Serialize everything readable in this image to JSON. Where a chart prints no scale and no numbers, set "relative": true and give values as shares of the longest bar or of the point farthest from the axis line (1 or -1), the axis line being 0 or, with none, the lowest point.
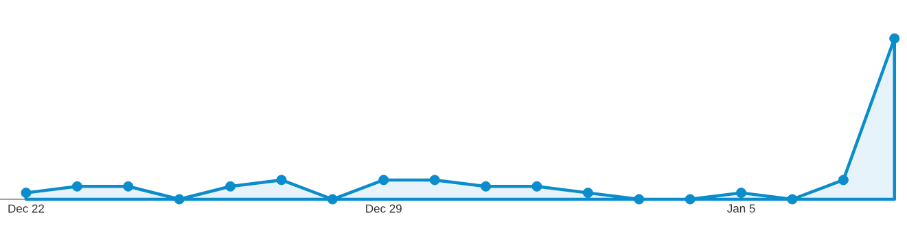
{
  "chart_data": {
    "type": "area",
    "relative": true,
    "color": "#0a8ccd",
    "marker": "circle",
    "categories": [
      "Dec 22",
      null,
      null,
      null,
      null,
      null,
      null,
      "Dec 29",
      null,
      null,
      null,
      null,
      null,
      null,
      "Jan 5",
      null,
      null,
      null
    ],
    "values": [
      0.04,
      0.08,
      0.08,
      0,
      0.08,
      0.12,
      0,
      0.12,
      0.12,
      0.08,
      0.08,
      0.04,
      0,
      0,
      0.04,
      0,
      0.12,
      1
    ]
  }
}
